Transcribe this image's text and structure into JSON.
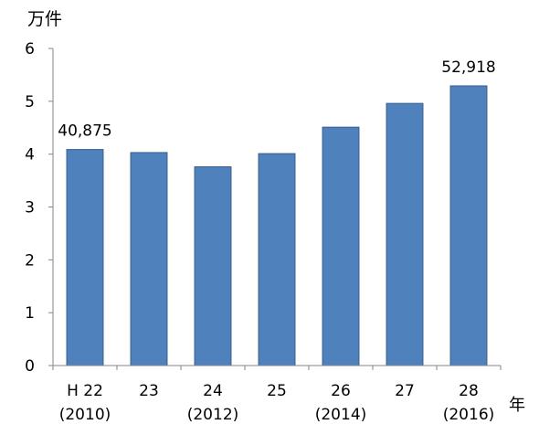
{
  "chart_data": {
    "type": "bar",
    "title": "",
    "ylabel": "万件",
    "xlabel": "年",
    "ylim": [
      0,
      6
    ],
    "yticks": [
      "0",
      "1",
      "2",
      "3",
      "4",
      "5",
      "6"
    ],
    "categories": [
      {
        "line1": "H 22",
        "line2": "(2010)"
      },
      {
        "line1": "23",
        "line2": ""
      },
      {
        "line1": "24",
        "line2": "(2012)"
      },
      {
        "line1": "25",
        "line2": ""
      },
      {
        "line1": "26",
        "line2": "(2014)"
      },
      {
        "line1": "27",
        "line2": ""
      },
      {
        "line1": "28",
        "line2": "(2016)"
      }
    ],
    "values": [
      4.0875,
      4.03,
      3.76,
      4.01,
      4.51,
      4.96,
      5.2918
    ],
    "data_labels": [
      "40,875",
      "",
      "",
      "",
      "",
      "",
      "52,918"
    ],
    "bar_color": "#4f81bd",
    "bar_edge_color": "#385d8a",
    "grid": false,
    "legend": "none"
  }
}
